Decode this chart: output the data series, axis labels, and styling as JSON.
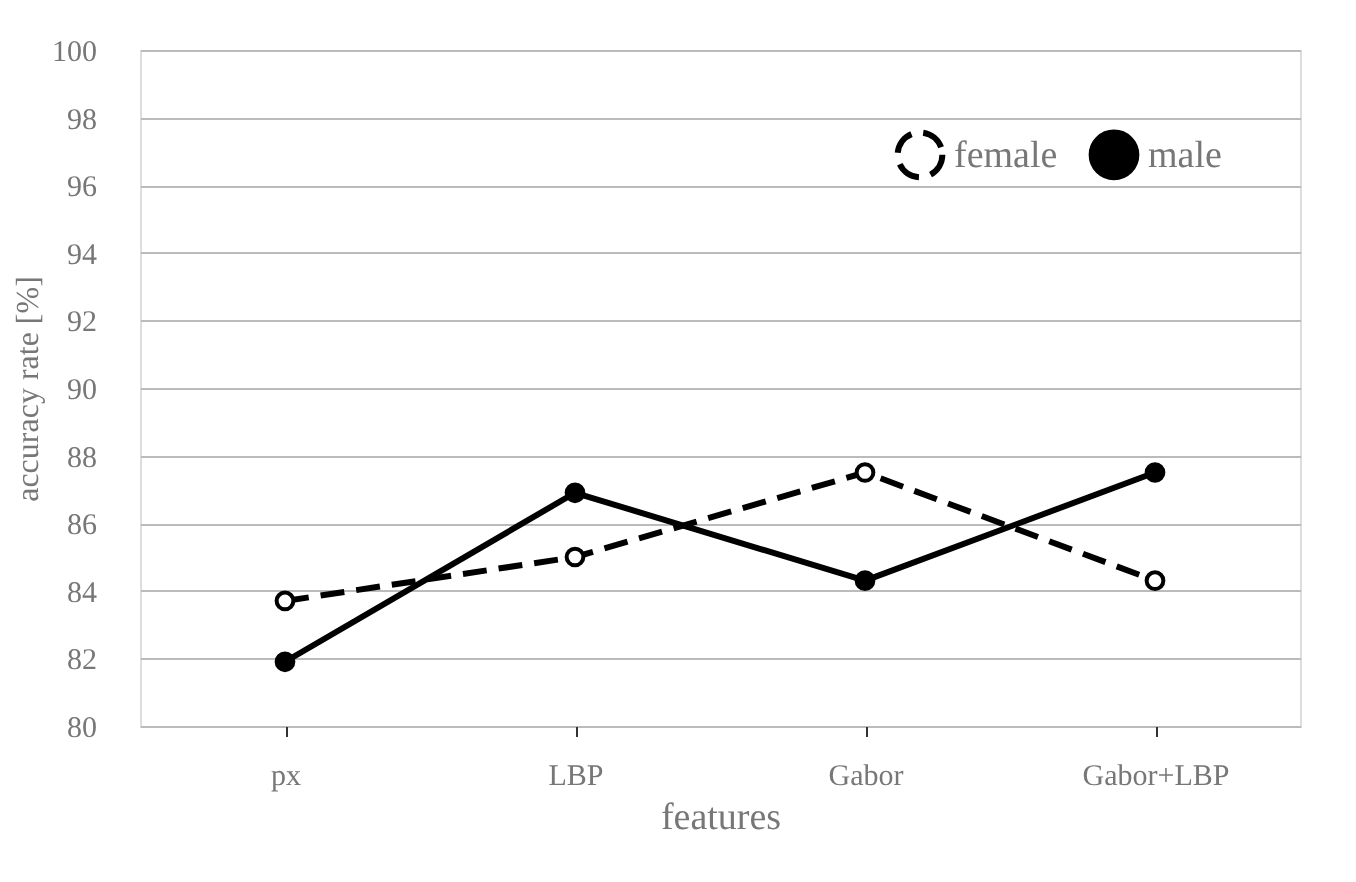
{
  "chart_data": {
    "type": "line",
    "xlabel": "features",
    "ylabel": "accuracy rate [%]",
    "categories": [
      "px",
      "LBP",
      "Gabor",
      "Gabor+LBP"
    ],
    "series": [
      {
        "name": "female",
        "color": "#000000",
        "line_style": "dashed",
        "marker": "circle",
        "values": [
          83.7,
          85.0,
          87.5,
          84.3
        ]
      },
      {
        "name": "male",
        "color": "#000000",
        "line_style": "solid",
        "marker": "circle",
        "values": [
          81.9,
          86.9,
          84.3,
          87.5
        ]
      }
    ],
    "ylim": [
      80,
      100
    ],
    "yticks": [
      80,
      82,
      84,
      86,
      88,
      90,
      92,
      94,
      96,
      98,
      100
    ],
    "grid": "y",
    "legend": "top right"
  }
}
